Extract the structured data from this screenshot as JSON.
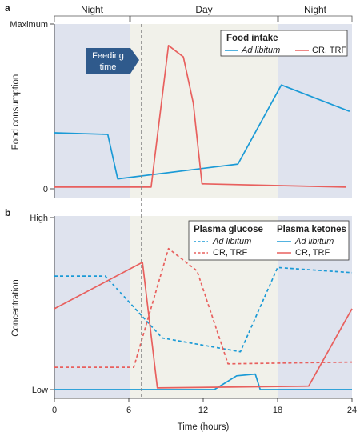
{
  "colors": {
    "ad_libitum": "#1a9ad6",
    "cr_trf": "#e8605e",
    "night_bg": "#dfe3ee",
    "day_bg": "#f1f1ea",
    "callout_bg": "#2f5a8c",
    "axis": "#222222"
  },
  "timeline": {
    "night_left": "Night",
    "day": "Day",
    "night_right": "Night",
    "night_start": [
      0,
      6
    ],
    "day_range": [
      6,
      18
    ],
    "night_end": [
      18,
      24
    ]
  },
  "xaxis": {
    "label": "Time (hours)",
    "ticks": [
      0,
      6,
      12,
      18,
      24
    ],
    "lim": [
      0,
      24
    ]
  },
  "callout": {
    "line1": "Feeding",
    "line2": "time",
    "x": 7
  },
  "chart_data": [
    {
      "panel_label": "a",
      "type": "line",
      "ylabel": "Food consumption",
      "ytick_labels": [
        "Maximum",
        "0"
      ],
      "ylim": [
        0,
        100
      ],
      "legend": {
        "title": "Food intake",
        "position": "top-right"
      },
      "series": [
        {
          "name": "Ad libitum",
          "style": "solid",
          "color_key": "ad_libitum",
          "points": [
            [
              0,
              34
            ],
            [
              4.3,
              33
            ],
            [
              5.1,
              6
            ],
            [
              14.8,
              15
            ],
            [
              18.3,
              63
            ],
            [
              23.8,
              47
            ]
          ]
        },
        {
          "name": "CR, TRF",
          "style": "solid",
          "color_key": "cr_trf",
          "points": [
            [
              0,
              1
            ],
            [
              7.8,
              1
            ],
            [
              9.2,
              87
            ],
            [
              10.4,
              80
            ],
            [
              11.2,
              52
            ],
            [
              11.9,
              3
            ],
            [
              23.5,
              1
            ]
          ]
        }
      ]
    },
    {
      "panel_label": "b",
      "type": "line",
      "ylabel": "Concentration",
      "ytick_labels": [
        "High",
        "Low"
      ],
      "ylim": [
        0,
        100
      ],
      "legend_groups": [
        {
          "title": "Plasma glucose",
          "style": "dashed",
          "entries": [
            {
              "name": "Ad libitum",
              "color_key": "ad_libitum"
            },
            {
              "name": "CR, TRF",
              "color_key": "cr_trf"
            }
          ]
        },
        {
          "title": "Plasma ketones",
          "style": "solid",
          "entries": [
            {
              "name": "Ad libitum",
              "color_key": "ad_libitum"
            },
            {
              "name": "CR, TRF",
              "color_key": "cr_trf"
            }
          ]
        }
      ],
      "series": [
        {
          "name": "Plasma glucose · Ad libitum",
          "style": "dashed",
          "color_key": "ad_libitum",
          "points": [
            [
              0,
              66
            ],
            [
              4.1,
              66
            ],
            [
              8.7,
              30
            ],
            [
              15.0,
              22
            ],
            [
              18.0,
              71
            ],
            [
              24,
              68
            ]
          ]
        },
        {
          "name": "Plasma glucose · CR, TRF",
          "style": "dashed",
          "color_key": "cr_trf",
          "points": [
            [
              0,
              13
            ],
            [
              6.4,
              13
            ],
            [
              9.2,
              82
            ],
            [
              11.5,
              69
            ],
            [
              14.0,
              15
            ],
            [
              24,
              16
            ]
          ]
        },
        {
          "name": "Plasma ketones · Ad libitum",
          "style": "solid",
          "color_key": "ad_libitum",
          "points": [
            [
              0,
              0
            ],
            [
              12.9,
              0
            ],
            [
              14.7,
              8
            ],
            [
              16.2,
              9
            ],
            [
              16.6,
              0
            ],
            [
              24,
              0
            ]
          ]
        },
        {
          "name": "Plasma ketones · CR, TRF",
          "style": "solid",
          "color_key": "cr_trf",
          "points": [
            [
              0,
              47
            ],
            [
              7.1,
              74
            ],
            [
              8.3,
              1
            ],
            [
              20.5,
              2
            ],
            [
              24,
              47
            ]
          ]
        }
      ]
    }
  ]
}
